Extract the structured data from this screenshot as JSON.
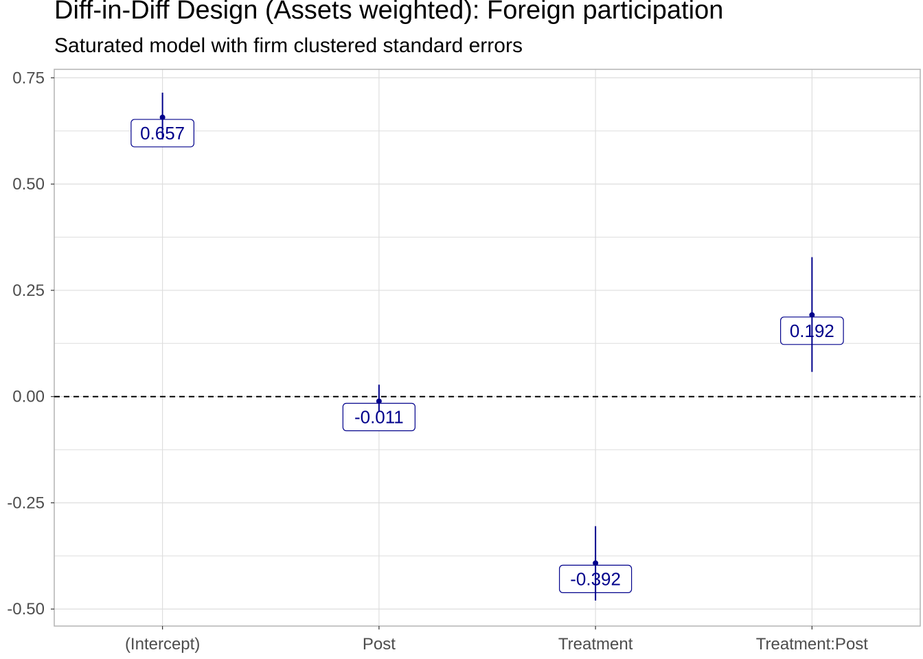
{
  "title": "Diff-in-Diff Design (Assets weighted): Foreign participation",
  "subtitle": "Saturated model with firm clustered standard errors",
  "colors": {
    "point": "#00008B",
    "label_text": "#00008B",
    "label_border": "#00008B",
    "grid": "#dedede",
    "panel_border": "#b3b3b3",
    "reference_line": "#000000",
    "tick_text": "#4d4d4d"
  },
  "chart_data": {
    "type": "scatter",
    "categories": [
      "(Intercept)",
      "Post",
      "Treatment",
      "Treatment:Post"
    ],
    "values": [
      0.657,
      -0.011,
      -0.392,
      0.192
    ],
    "labels": [
      "0.657",
      "-0.011",
      "-0.392",
      "0.192"
    ],
    "ci_low": [
      0.605,
      -0.035,
      -0.48,
      0.058
    ],
    "ci_high": [
      0.715,
      0.028,
      -0.305,
      0.328
    ],
    "ylim": [
      -0.54,
      0.77
    ],
    "yticks": [
      0.75,
      0.5,
      0.25,
      0.0,
      -0.25,
      -0.5
    ],
    "ytick_labels": [
      "0.75",
      "0.50",
      "0.25",
      "0.00",
      "-0.25",
      "-0.50"
    ],
    "reference_line": 0,
    "reference_line_style": "dashed",
    "grid": true
  }
}
